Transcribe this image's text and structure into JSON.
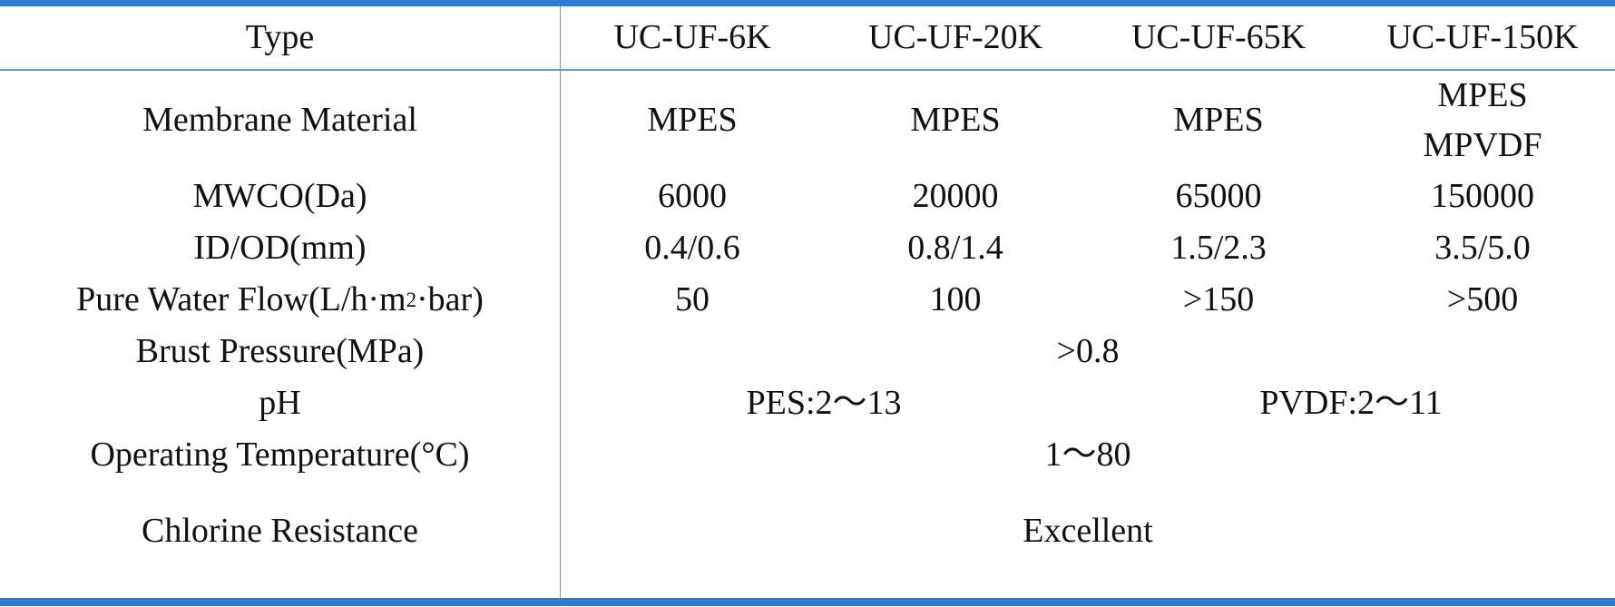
{
  "header": {
    "label": "Type",
    "models": [
      "UC-UF-6K",
      "UC-UF-20K",
      "UC-UF-65K",
      "UC-UF-150K"
    ]
  },
  "rows": {
    "membrane_material": {
      "label": "Membrane Material",
      "values": [
        "MPES",
        "MPES",
        "MPES"
      ],
      "last_lines": [
        "MPES",
        "MPVDF"
      ]
    },
    "mwco": {
      "label": "MWCO(Da)",
      "values": [
        "6000",
        "20000",
        "65000",
        "150000"
      ]
    },
    "id_od": {
      "label": "ID/OD(mm)",
      "values": [
        "0.4/0.6",
        "0.8/1.4",
        "1.5/2.3",
        "3.5/5.0"
      ]
    },
    "pure_water_flow": {
      "label_pre": "Pure Water Flow(L/h·m",
      "label_sup": "2",
      "label_post": "·bar)",
      "values": [
        "50",
        "100",
        ">150",
        ">500"
      ]
    },
    "burst_pressure": {
      "label": "Brust Pressure(MPa)",
      "value": ">0.8"
    },
    "ph": {
      "label": "pH",
      "pes": "PES:2～13",
      "pvdf": "PVDF:2～11"
    },
    "operating_temperature": {
      "label": "Operating Temperature(°C)",
      "value": "1～80"
    },
    "chlorine_resistance": {
      "label": "Chlorine Resistance",
      "value": "Excellent"
    }
  }
}
